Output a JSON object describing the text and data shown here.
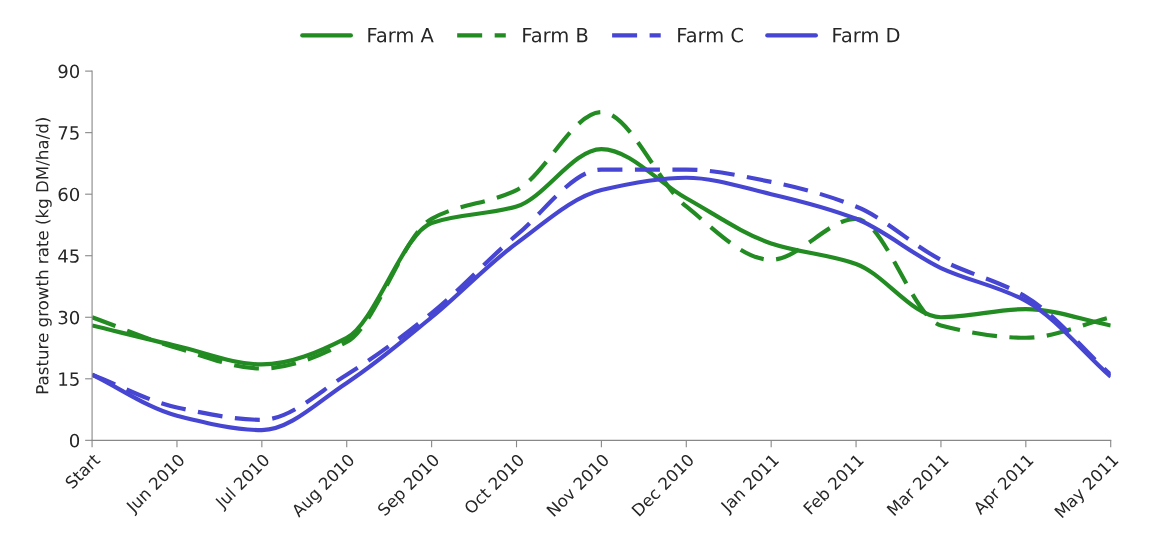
{
  "chart_data": {
    "type": "line",
    "ylabel": "Pasture growth rate (kg DM/ha/d)",
    "categories": [
      "Start",
      "Jun 2010",
      "Jul 2010",
      "Aug 2010",
      "Sep 2010",
      "Oct 2010",
      "Nov 2010",
      "Dec 2010",
      "Jan 2011",
      "Feb 2011",
      "Mar 2011",
      "Apr 2011",
      "May 2011"
    ],
    "series": [
      {
        "name": "Farm A",
        "color": "#228b22",
        "line_style": "solid",
        "values": [
          28,
          23,
          18.5,
          25,
          53,
          57,
          71,
          59,
          48,
          43,
          30,
          32,
          28
        ]
      },
      {
        "name": "Farm B",
        "color": "#228b22",
        "line_style": "dashed",
        "values": [
          30,
          22.5,
          17.5,
          24,
          54,
          61,
          80,
          57,
          44,
          54,
          28,
          25,
          30
        ]
      },
      {
        "name": "Farm C",
        "color": "#4646d2",
        "line_style": "dashed",
        "values": [
          16,
          8,
          5,
          16,
          31,
          50,
          66,
          66,
          63,
          57,
          44,
          35,
          16
        ]
      },
      {
        "name": "Farm D",
        "color": "#4646d2",
        "line_style": "solid",
        "values": [
          16,
          6,
          2.5,
          14,
          30,
          48,
          61,
          64,
          60,
          54,
          42,
          34,
          15.5
        ]
      }
    ],
    "ylim": [
      0,
      90
    ],
    "yticks": [
      0,
      15,
      30,
      45,
      60,
      75,
      90
    ],
    "grid": false,
    "legend": "top",
    "marker": "none"
  }
}
